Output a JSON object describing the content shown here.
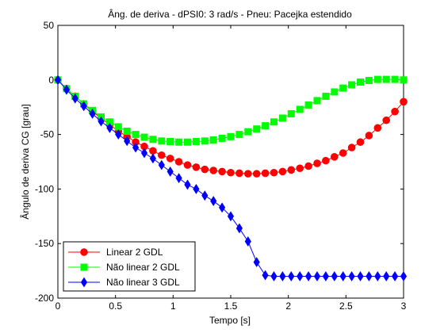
{
  "chart_data": {
    "type": "line",
    "title": "Âng. de deriva - dPSI0: 3 rad/s - Pneu: Pacejka estendido",
    "xlabel": "Tempo [s]",
    "ylabel": "Ângulo de deriva CG [grau]",
    "xlim": [
      0,
      3
    ],
    "ylim": [
      -200,
      50
    ],
    "xticks": [
      0,
      0.5,
      1,
      1.5,
      2,
      2.5,
      3
    ],
    "xtick_labels": [
      "0",
      "0.5",
      "1",
      "1.5",
      "2",
      "2.5",
      "3"
    ],
    "yticks": [
      -200,
      -150,
      -100,
      -50,
      0,
      50
    ],
    "ytick_labels": [
      "-200",
      "-150",
      "-100",
      "-50",
      "0",
      "50"
    ],
    "grid": false,
    "legend_position": "bottom-left",
    "series": [
      {
        "name": "Linear 2 GDL",
        "color": "#ff0000",
        "marker": "circle",
        "x": [
          0,
          0.075,
          0.15,
          0.225,
          0.3,
          0.375,
          0.45,
          0.525,
          0.6,
          0.675,
          0.75,
          0.825,
          0.9,
          0.975,
          1.05,
          1.125,
          1.2,
          1.275,
          1.35,
          1.425,
          1.5,
          1.575,
          1.65,
          1.725,
          1.8,
          1.875,
          1.95,
          2.025,
          2.1,
          2.175,
          2.25,
          2.325,
          2.4,
          2.475,
          2.55,
          2.625,
          2.7,
          2.775,
          2.85,
          2.925,
          3.0
        ],
        "y": [
          0,
          -8,
          -15,
          -22,
          -29,
          -35,
          -41,
          -47,
          -52,
          -57,
          -61,
          -65,
          -69,
          -72,
          -75,
          -78,
          -80,
          -82,
          -83,
          -84,
          -85,
          -85.5,
          -86,
          -86,
          -85.5,
          -85,
          -84,
          -82.5,
          -81,
          -79,
          -76.5,
          -74,
          -70.5,
          -67,
          -62,
          -57,
          -51,
          -44,
          -37,
          -29,
          -20
        ]
      },
      {
        "name": "Não linear 2 GDL",
        "color": "#00ff00",
        "marker": "square",
        "x": [
          0,
          0.075,
          0.15,
          0.225,
          0.3,
          0.375,
          0.45,
          0.525,
          0.6,
          0.675,
          0.75,
          0.825,
          0.9,
          0.975,
          1.05,
          1.125,
          1.2,
          1.275,
          1.35,
          1.425,
          1.5,
          1.575,
          1.65,
          1.725,
          1.8,
          1.875,
          1.95,
          2.025,
          2.1,
          2.175,
          2.25,
          2.325,
          2.4,
          2.475,
          2.55,
          2.625,
          2.7,
          2.775,
          2.85,
          2.925,
          3.0
        ],
        "y": [
          0,
          -8,
          -15,
          -22,
          -28,
          -34,
          -38.5,
          -43,
          -47,
          -50,
          -52.5,
          -54.5,
          -56,
          -56.5,
          -57,
          -57,
          -56.5,
          -56,
          -55,
          -53.5,
          -52,
          -50,
          -47.5,
          -45,
          -42,
          -38.5,
          -35,
          -31,
          -27,
          -23,
          -19,
          -15,
          -11,
          -7.5,
          -4.5,
          -2,
          -0.5,
          0.5,
          0.5,
          0.5,
          0
        ]
      },
      {
        "name": "Não linear 3 GDL",
        "color": "#0000ff",
        "marker": "diamond",
        "x": [
          0,
          0.075,
          0.15,
          0.225,
          0.3,
          0.375,
          0.45,
          0.525,
          0.6,
          0.675,
          0.75,
          0.825,
          0.9,
          0.975,
          1.05,
          1.125,
          1.2,
          1.275,
          1.35,
          1.425,
          1.5,
          1.575,
          1.65,
          1.725,
          1.8,
          1.875,
          1.95,
          2.025,
          2.1,
          2.175,
          2.25,
          2.325,
          2.4,
          2.475,
          2.55,
          2.625,
          2.7,
          2.775,
          2.85,
          2.925,
          3.0
        ],
        "y": [
          0,
          -9,
          -17,
          -24,
          -31,
          -38,
          -44,
          -50,
          -56,
          -62,
          -67,
          -72,
          -78,
          -84,
          -90,
          -96,
          -100,
          -106,
          -111,
          -117,
          -125,
          -136,
          -148,
          -167,
          -179,
          -180,
          -180,
          -180,
          -180,
          -180,
          -180,
          -180,
          -180,
          -180,
          -180,
          -180,
          -180,
          -180,
          -180,
          -180,
          -180
        ]
      }
    ]
  }
}
